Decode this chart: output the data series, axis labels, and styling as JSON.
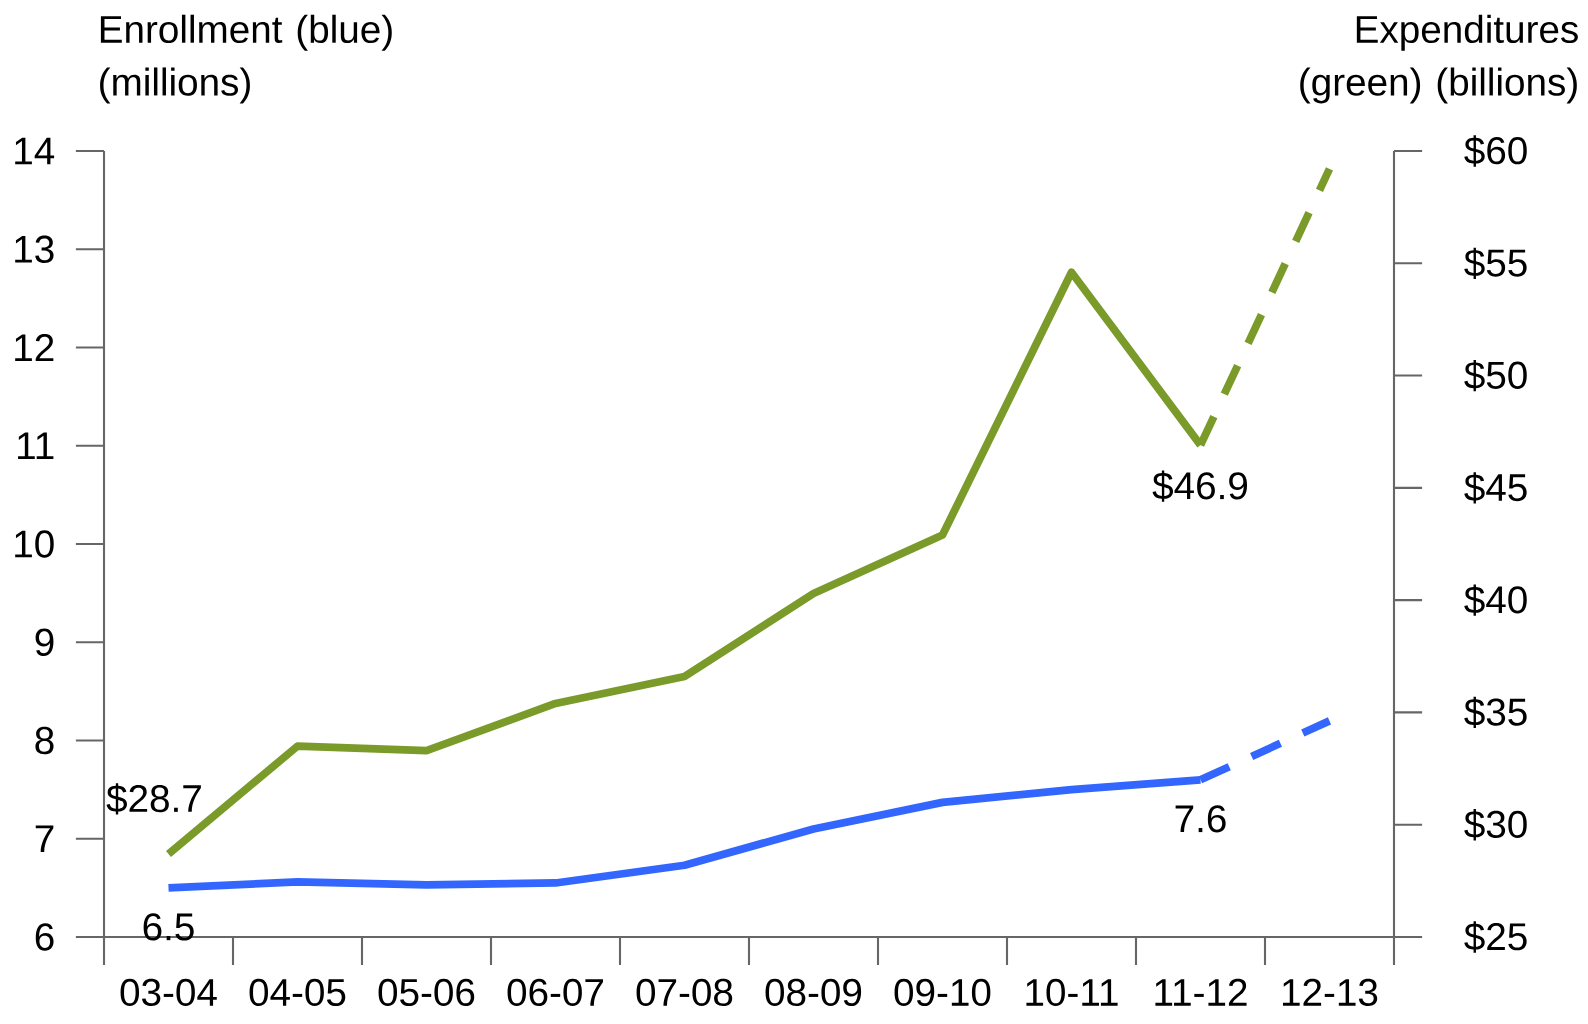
{
  "chart_data": {
    "type": "line",
    "ylabel": "Enrollment (blue) (millions)",
    "y2label": "Expenditures (green) (billions)",
    "categories": [
      "03-04",
      "04-05",
      "05-06",
      "06-07",
      "07-08",
      "08-09",
      "09-10",
      "10-11",
      "11-12",
      "12-13"
    ],
    "series": [
      {
        "color": "#3366ff",
        "line_style": "solid",
        "values": [
          6.5,
          6.56,
          6.53,
          6.55,
          6.73,
          7.1,
          7.37,
          7.5,
          7.6,
          null
        ],
        "value_labels": [
          "6.5",
          null,
          null,
          null,
          null,
          null,
          null,
          null,
          "7.6",
          null
        ]
      },
      {
        "color": "#3366ff",
        "line_style": "dashed",
        "values": [
          null,
          null,
          null,
          null,
          null,
          null,
          null,
          null,
          7.6,
          8.2
        ]
      },
      {
        "color": "#7a9a2a",
        "line_style": "solid",
        "axis": "y2",
        "values": [
          28.7,
          33.5,
          33.3,
          35.4,
          36.6,
          40.3,
          42.9,
          54.6,
          46.9,
          null
        ],
        "value_labels": [
          "$28.7",
          null,
          null,
          null,
          null,
          null,
          null,
          null,
          "$46.9",
          null
        ]
      },
      {
        "color": "#7a9a2a",
        "line_style": "dashed",
        "axis": "y2",
        "values": [
          null,
          null,
          null,
          null,
          null,
          null,
          null,
          null,
          46.9,
          59.2
        ]
      }
    ],
    "ylim": [
      6,
      14
    ],
    "yticks": [
      6,
      7,
      8,
      9,
      10,
      11,
      12,
      13,
      14
    ],
    "y2lim": [
      25,
      60
    ],
    "y2ticks": [
      {
        "value": 25,
        "label": "$25"
      },
      {
        "value": 30,
        "label": "$30"
      },
      {
        "value": 35,
        "label": "$35"
      },
      {
        "value": 40,
        "label": "$40"
      },
      {
        "value": 45,
        "label": "$45"
      },
      {
        "value": 50,
        "label": "$50"
      },
      {
        "value": 55,
        "label": "$55"
      },
      {
        "value": 60,
        "label": "$60"
      }
    ]
  }
}
